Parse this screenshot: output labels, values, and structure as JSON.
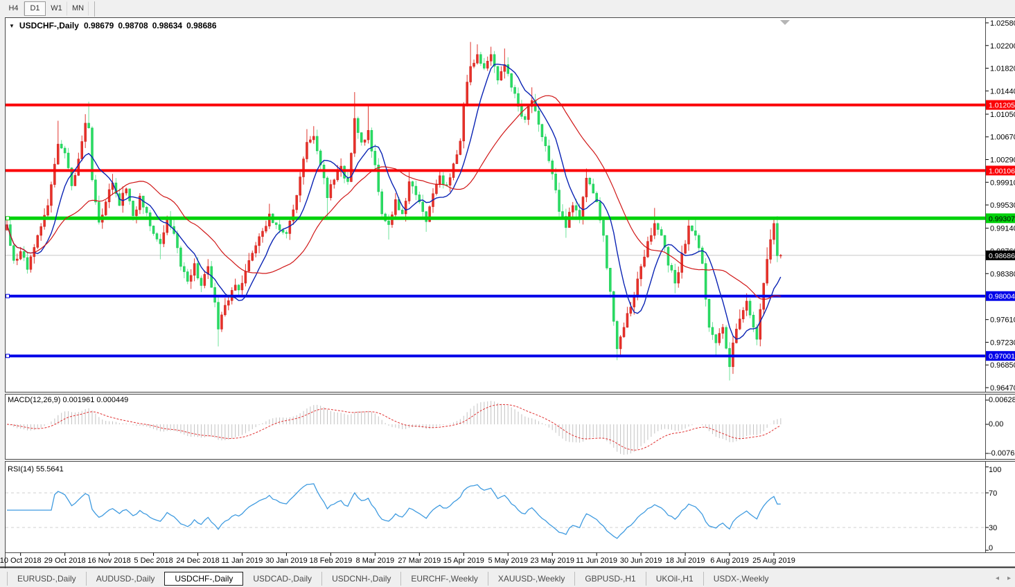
{
  "toolbar": {
    "timeframes": [
      "H4",
      "D1",
      "W1",
      "MN"
    ],
    "active": "D1"
  },
  "header": {
    "collapse_icon": "triangle-down",
    "symbol": "USDCHF-,Daily",
    "open": "0.98679",
    "high": "0.98708",
    "low": "0.98634",
    "close": "0.98686"
  },
  "indicators": {
    "macd": {
      "name": "MACD(12,26,9)",
      "values": "0.001961 0.000449"
    },
    "rsi": {
      "name": "RSI(14)",
      "value": "55.5641"
    }
  },
  "colors": {
    "bull_body": "#e8312a",
    "bull_stroke": "#c9201a",
    "bull_wick": "#e0342c",
    "bear_body": "#2bdc63",
    "bear_stroke": "#14c653",
    "bear_wick": "#6fe39b",
    "ma_fast": "#0a23b4",
    "ma_slow": "#d01616",
    "level_red": "#fb0207",
    "level_green": "#00d20b",
    "level_blue": "#0003e8",
    "current_line": "#c6c6c6",
    "current_label_bg": "#000000",
    "macd_hist": "#c2c2c2",
    "macd_signal": "#e03131",
    "rsi_line": "#3f9be0",
    "rsi_levels": "#cfcfcf",
    "border": "#4a4a4a",
    "axis_text": "#000000"
  },
  "chart_data": {
    "type": "candlestick+indicators",
    "symbol": "USDCHF-",
    "timeframe": "Daily",
    "bar_count": 228,
    "bars_per_label": 13,
    "first_label_bar": 4,
    "last_candle": {
      "open": 0.98679,
      "high": 0.98708,
      "low": 0.98634,
      "close": 0.98686
    },
    "price_axis_ticks": [
      "1.02580",
      "1.02200",
      "1.01820",
      "1.01440",
      "1.01050",
      "1.00670",
      "1.00290",
      "0.99910",
      "0.99530",
      "0.99140",
      "0.98760",
      "0.98380",
      "0.97610",
      "0.97230",
      "0.96850",
      "0.96470"
    ],
    "x_axis_labels": [
      "10 Oct 2018",
      "29 Oct 2018",
      "16 Nov 2018",
      "5 Dec 2018",
      "24 Dec 2018",
      "11 Jan 2019",
      "30 Jan 2019",
      "18 Feb 2019",
      "8 Mar 2019",
      "27 Mar 2019",
      "15 Apr 2019",
      "5 May 2019",
      "23 May 2019",
      "11 Jun 2019",
      "30 Jun 2019",
      "18 Jul 2019",
      "6 Aug 2019",
      "25 Aug 2019"
    ],
    "levels": [
      {
        "price": 1.01205,
        "label": "1.01205",
        "color": "#fb0207",
        "label_fg": "#ffffff",
        "thickness": 4,
        "handle": false
      },
      {
        "price": 1.00106,
        "label": "1.00106",
        "color": "#fb0207",
        "label_fg": "#ffffff",
        "thickness": 4,
        "handle": false
      },
      {
        "price": 0.99307,
        "label": "0.99307",
        "color": "#00d20b",
        "label_fg": "#000000",
        "thickness": 5,
        "handle": true
      },
      {
        "price": 0.98004,
        "label": "0.98004",
        "color": "#0003e8",
        "label_fg": "#ffffff",
        "thickness": 4,
        "handle": true
      },
      {
        "price": 0.97001,
        "label": "0.97001",
        "color": "#0003e8",
        "label_fg": "#ffffff",
        "thickness": 4,
        "handle": true
      }
    ],
    "current_price": {
      "value": 0.98686,
      "label": "0.98686"
    },
    "moving_averages": [
      {
        "period": 9,
        "color": "#0a23b4"
      },
      {
        "period": 28,
        "color": "#d01616"
      }
    ],
    "macd": {
      "params": [
        12,
        26,
        9
      ],
      "axis_ticks": [
        "0.006286",
        "0.00",
        "-0.00762"
      ],
      "current": 0.001961,
      "signal": 0.000449
    },
    "rsi": {
      "period": 14,
      "levels": [
        70,
        30
      ],
      "axis_ticks": [
        "100",
        "70",
        "30",
        "0"
      ],
      "current": 55.5641
    },
    "price_anchors": [
      [
        0,
        0.992
      ],
      [
        2,
        0.986
      ],
      [
        4,
        0.9875
      ],
      [
        6,
        0.9845,
        null,
        0.9838
      ],
      [
        9,
        0.9902
      ],
      [
        12,
        0.9952
      ],
      [
        15,
        1.0055,
        1.0094
      ],
      [
        17,
        1.004
      ],
      [
        19,
        0.9985
      ],
      [
        21,
        1.003
      ],
      [
        23,
        1.009,
        1.0105
      ],
      [
        24,
        1.0082,
        1.0126
      ],
      [
        25,
        0.9995
      ],
      [
        27,
        0.9924
      ],
      [
        29,
        0.9958
      ],
      [
        31,
        0.999,
        1.0005
      ],
      [
        33,
        0.9952
      ],
      [
        35,
        0.998
      ],
      [
        37,
        0.9935
      ],
      [
        39,
        0.9968
      ],
      [
        41,
        0.994
      ],
      [
        43,
        0.9905
      ],
      [
        45,
        0.9888,
        null,
        0.9862
      ],
      [
        47,
        0.9932
      ],
      [
        49,
        0.9905
      ],
      [
        51,
        0.985
      ],
      [
        53,
        0.9825
      ],
      [
        55,
        0.9855
      ],
      [
        57,
        0.9818
      ],
      [
        59,
        0.985
      ],
      [
        61,
        0.979
      ],
      [
        62,
        0.9745,
        null,
        0.9716
      ],
      [
        64,
        0.9785
      ],
      [
        66,
        0.981
      ],
      [
        69,
        0.9822
      ],
      [
        71,
        0.986
      ],
      [
        74,
        0.99
      ],
      [
        77,
        0.9938,
        0.9955
      ],
      [
        79,
        0.992
      ],
      [
        82,
        0.9905
      ],
      [
        84,
        0.9945
      ],
      [
        86,
        1.0
      ],
      [
        88,
        1.0058,
        1.008
      ],
      [
        90,
        1.0068,
        1.0085
      ],
      [
        92,
        1.002
      ],
      [
        94,
        0.9965,
        null,
        0.9933
      ],
      [
        96,
        0.9995
      ],
      [
        98,
        1.0018
      ],
      [
        100,
        0.9992
      ],
      [
        102,
        1.0098,
        1.0142
      ],
      [
        104,
        1.0058
      ],
      [
        106,
        1.0078,
        1.012
      ],
      [
        108,
        1.002
      ],
      [
        110,
        0.9938
      ],
      [
        112,
        0.992,
        null,
        0.9895
      ],
      [
        114,
        0.9962
      ],
      [
        116,
        0.9938
      ],
      [
        118,
        0.9992,
        1.0008
      ],
      [
        121,
        0.9958
      ],
      [
        123,
        0.9925,
        null,
        0.9908
      ],
      [
        125,
        0.9972
      ],
      [
        127,
        1.0002
      ],
      [
        129,
        0.9986
      ],
      [
        131,
        1.0022
      ],
      [
        133,
        1.006
      ],
      [
        134,
        1.0122
      ],
      [
        136,
        1.0185,
        1.0226
      ],
      [
        138,
        1.0205,
        1.0222
      ],
      [
        140,
        1.0182
      ],
      [
        142,
        1.0205,
        1.0218
      ],
      [
        144,
        1.0162
      ],
      [
        146,
        1.0188,
        1.0215
      ],
      [
        148,
        1.015
      ],
      [
        150,
        1.0118
      ],
      [
        152,
        1.0096
      ],
      [
        154,
        1.0128,
        1.015
      ],
      [
        156,
        1.0088
      ],
      [
        158,
        1.0052
      ],
      [
        160,
        1.0005
      ],
      [
        162,
        0.9942
      ],
      [
        164,
        0.9915,
        null,
        0.9898
      ],
      [
        166,
        0.9952
      ],
      [
        168,
        0.9932
      ],
      [
        170,
        0.9998,
        1.0014
      ],
      [
        171,
        0.9988
      ],
      [
        173,
        0.9958
      ],
      [
        175,
        0.9902
      ],
      [
        177,
        0.9808
      ],
      [
        179,
        0.9712,
        null,
        0.9693
      ],
      [
        181,
        0.9748
      ],
      [
        183,
        0.9782
      ],
      [
        186,
        0.985
      ],
      [
        188,
        0.9892
      ],
      [
        190,
        0.9922,
        0.9948
      ],
      [
        192,
        0.9902
      ],
      [
        194,
        0.9852
      ],
      [
        196,
        0.9822,
        null,
        0.9805
      ],
      [
        198,
        0.9872
      ],
      [
        200,
        0.9918,
        0.9932
      ],
      [
        202,
        0.9902,
        0.993
      ],
      [
        204,
        0.9855
      ],
      [
        205,
        0.9795
      ],
      [
        206,
        0.9748
      ],
      [
        208,
        0.9722,
        null,
        0.9701
      ],
      [
        210,
        0.9748
      ],
      [
        212,
        0.9682,
        null,
        0.9659
      ],
      [
        213,
        0.9722
      ],
      [
        215,
        0.9762,
        0.9778
      ],
      [
        217,
        0.9792,
        0.9805
      ],
      [
        219,
        0.9748
      ],
      [
        220,
        0.9728,
        null,
        0.9718
      ],
      [
        221,
        0.9778
      ],
      [
        222,
        0.9822
      ],
      [
        223,
        0.9862,
        0.9882
      ],
      [
        224,
        0.9895,
        0.9912
      ],
      [
        225,
        0.9922,
        0.9929
      ],
      [
        226,
        0.98679
      ],
      [
        227,
        0.98686,
        0.98708,
        0.98634
      ]
    ]
  },
  "tab_bar": {
    "tabs": [
      "EURUSD-,Daily",
      "AUDUSD-,Daily",
      "USDCHF-,Daily",
      "USDCAD-,Daily",
      "USDCNH-,Daily",
      "EURCHF-,Weekly",
      "XAUUSD-,Weekly",
      "GBPUSD-,H1",
      "UKOil-,H1",
      "USDX-,Weekly"
    ],
    "active": "USDCHF-,Daily",
    "scroll_left_icon": "◂",
    "scroll_right_icon": "▸"
  }
}
